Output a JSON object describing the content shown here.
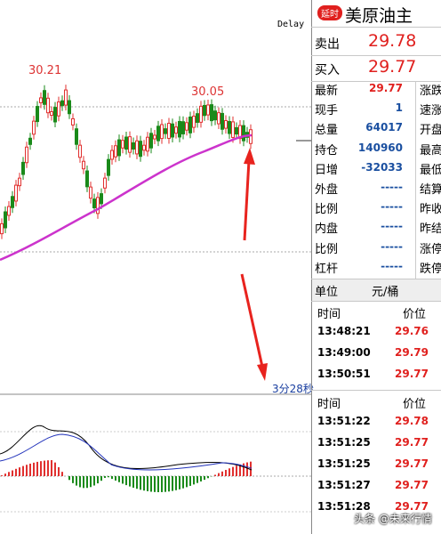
{
  "chart": {
    "delay": "Delay",
    "peak_labels": [
      "30.21",
      "30.05"
    ],
    "countdown": "3分28秒"
  },
  "panel": {
    "badge": "延时",
    "title": "美原油主",
    "quotes": [
      {
        "label": "卖出",
        "value": "29.78"
      },
      {
        "label": "买入",
        "value": "29.77"
      }
    ],
    "stats": [
      {
        "label": "最新",
        "value": "29.77"
      },
      {
        "label": "现手",
        "value": "1"
      },
      {
        "label": "总量",
        "value": "64017"
      },
      {
        "label": "持仓",
        "value": "140960"
      },
      {
        "label": "日增",
        "value": "-32033"
      },
      {
        "label": "外盘",
        "value": "-----"
      },
      {
        "label": "比例",
        "value": "-----"
      },
      {
        "label": "内盘",
        "value": "-----"
      },
      {
        "label": "比例",
        "value": "-----"
      },
      {
        "label": "杠杆",
        "value": "-----"
      }
    ],
    "stats_right": [
      "涨跌",
      "速涨",
      "开盘",
      "最高",
      "最低",
      "结算",
      "昨收",
      "昨结",
      "涨停",
      "跌停"
    ],
    "unit_label": "单位",
    "unit": "元/桶",
    "ticks1": {
      "headers": [
        "时间",
        "价位"
      ],
      "rows": [
        [
          "13:48:21",
          "29.76"
        ],
        [
          "13:49:00",
          "29.79"
        ],
        [
          "13:50:51",
          "29.77"
        ]
      ]
    },
    "ticks2": {
      "headers": [
        "时间",
        "价位"
      ],
      "rows": [
        [
          "13:51:22",
          "29.78"
        ],
        [
          "13:51:25",
          "29.77"
        ],
        [
          "13:51:25",
          "29.77"
        ],
        [
          "13:51:27",
          "29.77"
        ],
        [
          "13:51:28",
          "29.77"
        ]
      ]
    }
  },
  "watermark": "头条 @未来行情"
}
